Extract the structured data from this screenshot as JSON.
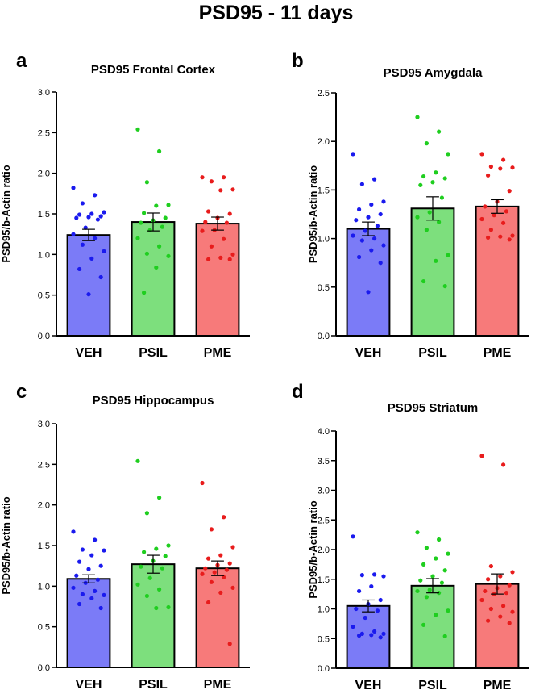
{
  "figure": {
    "title": "PSD95 - 11 days"
  },
  "chart_data": [
    {
      "type": "bar",
      "letter": "a",
      "title": "PSD95 Frontal Cortex",
      "xlabel": "",
      "ylabel": "PSD95/b-Actin ratio",
      "ylim": [
        0,
        3.0
      ],
      "yticks": [
        0.0,
        0.5,
        1.0,
        1.5,
        2.0,
        2.5,
        3.0
      ],
      "ytick_labels": [
        "0.0",
        "0.5",
        "1.0",
        "1.5",
        "2.0",
        "2.5",
        "3.0"
      ],
      "categories": [
        "VEH",
        "PSIL",
        "PME"
      ],
      "colors": {
        "fill": [
          "#7b7bf7",
          "#7ddf7d",
          "#f77a7a"
        ],
        "dot": [
          "#1a1aee",
          "#1fce1f",
          "#e81c1c"
        ]
      },
      "values": [
        1.24,
        1.4,
        1.38
      ],
      "sem": [
        0.07,
        0.11,
        0.08
      ],
      "points": [
        [
          1.82,
          1.73,
          1.63,
          1.52,
          1.5,
          1.49,
          1.47,
          1.46,
          1.45,
          1.43,
          1.33,
          1.25,
          1.2,
          1.12,
          1.04,
          0.95,
          0.82,
          0.72,
          0.51
        ],
        [
          2.54,
          2.27,
          1.89,
          1.61,
          1.6,
          1.51,
          1.45,
          1.42,
          1.39,
          1.34,
          1.3,
          1.2,
          1.1,
          1.01,
          0.98,
          0.84,
          0.53
        ],
        [
          1.95,
          1.95,
          1.9,
          1.8,
          1.79,
          1.53,
          1.5,
          1.45,
          1.4,
          1.39,
          1.3,
          1.29,
          1.19,
          1.1,
          1.0,
          0.96,
          0.94,
          0.94
        ]
      ]
    },
    {
      "type": "bar",
      "letter": "b",
      "title": "PSD95 Amygdala",
      "xlabel": "",
      "ylabel": "PSD95/b-Actin ratio",
      "ylim": [
        0,
        2.5
      ],
      "yticks": [
        0.0,
        0.5,
        1.0,
        1.5,
        2.0,
        2.5
      ],
      "ytick_labels": [
        "0.0",
        "0.5",
        "1.0",
        "1.5",
        "2.0",
        "2.5"
      ],
      "categories": [
        "VEH",
        "PSIL",
        "PME"
      ],
      "colors": {
        "fill": [
          "#7b7bf7",
          "#7ddf7d",
          "#f77a7a"
        ],
        "dot": [
          "#1a1aee",
          "#1fce1f",
          "#e81c1c"
        ]
      },
      "values": [
        1.1,
        1.31,
        1.33
      ],
      "sem": [
        0.07,
        0.12,
        0.07
      ],
      "points": [
        [
          1.87,
          1.61,
          1.56,
          1.38,
          1.35,
          1.3,
          1.25,
          1.22,
          1.19,
          1.13,
          1.08,
          1.03,
          1.0,
          0.98,
          0.93,
          0.88,
          0.81,
          0.75,
          0.45
        ],
        [
          2.25,
          2.1,
          1.98,
          1.87,
          1.68,
          1.64,
          1.62,
          1.58,
          1.55,
          1.42,
          1.27,
          1.22,
          1.17,
          1.09,
          0.83,
          0.77,
          0.56,
          0.51
        ],
        [
          1.87,
          1.81,
          1.74,
          1.73,
          1.72,
          1.65,
          1.49,
          1.38,
          1.33,
          1.28,
          1.24,
          1.2,
          1.16,
          1.09,
          1.03,
          1.02,
          1.01,
          0.99
        ]
      ]
    },
    {
      "type": "bar",
      "letter": "c",
      "title": "PSD95 Hippocampus",
      "xlabel": "",
      "ylabel": "PSD95/b-Actin ratio",
      "ylim": [
        0,
        3.0
      ],
      "yticks": [
        0.0,
        0.5,
        1.0,
        1.5,
        2.0,
        2.5,
        3.0
      ],
      "ytick_labels": [
        "0.0",
        "0.5",
        "1.0",
        "1.5",
        "2.0",
        "2.5",
        "3.0"
      ],
      "categories": [
        "VEH",
        "PSIL",
        "PME"
      ],
      "colors": {
        "fill": [
          "#7b7bf7",
          "#7ddf7d",
          "#f77a7a"
        ],
        "dot": [
          "#1a1aee",
          "#1fce1f",
          "#e81c1c"
        ]
      },
      "values": [
        1.09,
        1.27,
        1.22
      ],
      "sem": [
        0.05,
        0.11,
        0.09
      ],
      "points": [
        [
          1.67,
          1.57,
          1.45,
          1.44,
          1.38,
          1.3,
          1.25,
          1.21,
          1.13,
          1.08,
          1.04,
          0.98,
          0.94,
          0.9,
          0.89,
          0.85,
          0.78,
          0.73
        ],
        [
          2.54,
          2.09,
          1.9,
          1.5,
          1.46,
          1.42,
          1.37,
          1.31,
          1.24,
          1.22,
          1.1,
          1.02,
          0.96,
          0.88,
          0.74,
          0.73
        ],
        [
          2.27,
          1.85,
          1.7,
          1.48,
          1.38,
          1.34,
          1.28,
          1.26,
          1.22,
          1.2,
          1.17,
          1.15,
          1.11,
          1.05,
          0.98,
          0.92,
          0.8,
          0.29
        ]
      ]
    },
    {
      "type": "bar",
      "letter": "d",
      "title": "PSD95 Striatum",
      "xlabel": "",
      "ylabel": "PSD95/b-Actin ratio",
      "ylim": [
        0,
        4.0
      ],
      "yticks": [
        0.0,
        0.5,
        1.0,
        1.5,
        2.0,
        2.5,
        3.0,
        3.5,
        4.0
      ],
      "ytick_labels": [
        "0.0",
        "0.5",
        "1.0",
        "1.5",
        "2.0",
        "2.5",
        "3.0",
        "3.5",
        "4.0"
      ],
      "categories": [
        "VEH",
        "PSIL",
        "PME"
      ],
      "colors": {
        "fill": [
          "#7b7bf7",
          "#7ddf7d",
          "#f77a7a"
        ],
        "dot": [
          "#1a1aee",
          "#1fce1f",
          "#e81c1c"
        ]
      },
      "values": [
        1.05,
        1.39,
        1.42
      ],
      "sem": [
        0.1,
        0.12,
        0.17
      ],
      "points": [
        [
          2.22,
          1.58,
          1.57,
          1.55,
          1.38,
          1.3,
          1.15,
          1.08,
          1.0,
          0.97,
          0.85,
          0.7,
          0.62,
          0.58,
          0.58,
          0.56,
          0.55,
          0.52
        ],
        [
          2.29,
          2.17,
          2.03,
          1.93,
          1.85,
          1.75,
          1.65,
          1.55,
          1.48,
          1.44,
          1.32,
          1.3,
          1.27,
          1.2,
          0.97,
          0.9,
          0.73,
          0.54
        ],
        [
          3.58,
          3.43,
          1.72,
          1.62,
          1.55,
          1.5,
          1.4,
          1.35,
          1.3,
          1.27,
          1.25,
          1.15,
          1.05,
          1.0,
          0.95,
          0.87,
          0.8,
          0.76
        ]
      ]
    }
  ]
}
